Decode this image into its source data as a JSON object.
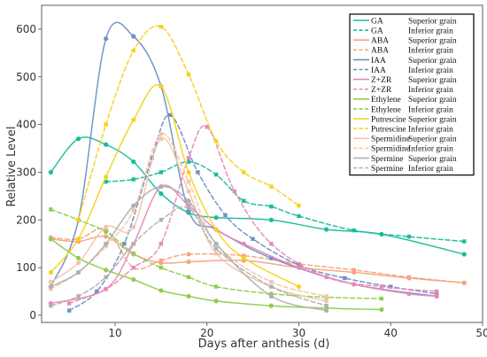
{
  "chart_data": {
    "type": "line",
    "xlabel": "Days after anthesis (d)",
    "ylabel": "Relative Level",
    "xlim": [
      2,
      50
    ],
    "ylim": [
      -15,
      650
    ],
    "xticks": [
      10,
      20,
      30,
      40,
      50
    ],
    "yticks": [
      0,
      100,
      200,
      300,
      400,
      500,
      600
    ],
    "grid": false,
    "legend_position": "top-right",
    "series": [
      {
        "name": "GA",
        "grain": "Superior grain",
        "style": "solid",
        "color": "#1abc9c",
        "x": [
          3,
          6,
          9,
          12,
          15,
          18,
          21,
          27,
          33,
          39,
          48
        ],
        "y": [
          300,
          370,
          358,
          322,
          255,
          215,
          205,
          200,
          180,
          170,
          128
        ]
      },
      {
        "name": "GA",
        "grain": "Inferior grain",
        "style": "dashed",
        "color": "#1abc9c",
        "x": [
          9,
          12,
          15,
          18,
          21,
          24,
          27,
          30,
          36,
          42,
          48
        ],
        "y": [
          280,
          285,
          300,
          322,
          295,
          240,
          228,
          208,
          178,
          165,
          155
        ]
      },
      {
        "name": "ABA",
        "grain": "Superior grain",
        "style": "solid",
        "color": "#f4a582",
        "x": [
          3,
          6,
          9,
          12,
          15,
          18,
          24,
          30,
          36,
          42,
          48
        ],
        "y": [
          160,
          155,
          165,
          128,
          110,
          112,
          115,
          100,
          90,
          78,
          68
        ]
      },
      {
        "name": "ABA",
        "grain": "Inferior grain",
        "style": "dashed",
        "color": "#f4a582",
        "x": [
          3,
          6,
          9,
          12,
          15,
          18,
          24,
          30,
          36,
          42,
          48
        ],
        "y": [
          163,
          160,
          180,
          100,
          115,
          128,
          125,
          108,
          95,
          80,
          68
        ]
      },
      {
        "name": "IAA",
        "grain": "Superior grain",
        "style": "solid",
        "color": "#6f8fc6",
        "x": [
          3,
          6,
          9,
          12,
          15,
          18,
          21,
          27,
          36,
          45
        ],
        "y": [
          60,
          200,
          580,
          585,
          480,
          220,
          180,
          120,
          65,
          40
        ]
      },
      {
        "name": "IAA",
        "grain": "Inferior grain",
        "style": "dashed",
        "color": "#6f8fc6",
        "x": [
          5,
          8,
          11,
          14,
          16,
          19,
          22,
          25,
          30,
          35,
          40,
          45
        ],
        "y": [
          10,
          50,
          150,
          330,
          420,
          300,
          210,
          160,
          105,
          78,
          60,
          45
        ]
      },
      {
        "name": "Z+ZR",
        "grain": "Superior grain",
        "style": "solid",
        "color": "#e889b8",
        "x": [
          3,
          9,
          12,
          15,
          18,
          21,
          24,
          30,
          36,
          42,
          45
        ],
        "y": [
          25,
          55,
          150,
          270,
          230,
          180,
          150,
          100,
          65,
          45,
          40
        ]
      },
      {
        "name": "Z+ZR",
        "grain": "Inferior grain",
        "style": "dashed",
        "color": "#e889b8",
        "x": [
          5,
          9,
          12,
          15,
          18,
          20,
          23,
          27,
          33,
          39,
          45
        ],
        "y": [
          25,
          55,
          100,
          150,
          330,
          395,
          260,
          150,
          80,
          60,
          50
        ]
      },
      {
        "name": "Ethylene",
        "grain": "Superior grain",
        "style": "solid",
        "color": "#8ccf4d",
        "x": [
          3,
          6,
          9,
          12,
          15,
          18,
          21,
          27,
          33,
          39
        ],
        "y": [
          160,
          120,
          95,
          75,
          52,
          40,
          30,
          20,
          15,
          12
        ]
      },
      {
        "name": "Ethylene",
        "grain": "Inferior grain",
        "style": "dashed",
        "color": "#8ccf4d",
        "x": [
          3,
          6,
          9,
          12,
          15,
          18,
          21,
          27,
          33,
          39
        ],
        "y": [
          222,
          200,
          175,
          130,
          100,
          80,
          60,
          45,
          38,
          35
        ]
      },
      {
        "name": "Putrescine",
        "grain": "Superior grain",
        "style": "solid",
        "color": "#f7d21c",
        "x": [
          3,
          6,
          9,
          12,
          15,
          18,
          21,
          24,
          30
        ],
        "y": [
          90,
          160,
          290,
          410,
          480,
          300,
          180,
          120,
          60
        ]
      },
      {
        "name": "Putrescine",
        "grain": "Inferior grain",
        "style": "dashed",
        "color": "#f7d21c",
        "x": [
          6,
          9,
          12,
          15,
          18,
          21,
          24,
          27,
          30
        ],
        "y": [
          200,
          400,
          555,
          605,
          505,
          365,
          300,
          270,
          230
        ]
      },
      {
        "name": "Spermidine",
        "grain": "Superior grain",
        "style": "solid",
        "color": "#f2c6a8",
        "x": [
          3,
          6,
          9,
          12,
          15,
          18,
          21,
          27,
          33
        ],
        "y": [
          70,
          110,
          185,
          185,
          370,
          260,
          130,
          60,
          30
        ]
      },
      {
        "name": "Spermidine",
        "grain": "Inferior grain",
        "style": "dashed",
        "color": "#f2c6a8",
        "x": [
          3,
          6,
          9,
          12,
          15,
          18,
          21,
          27,
          33
        ],
        "y": [
          55,
          90,
          145,
          220,
          380,
          280,
          150,
          70,
          40
        ]
      },
      {
        "name": "Spermine",
        "grain": "Superior grain",
        "style": "solid",
        "color": "#b0b0b0",
        "x": [
          3,
          6,
          9,
          12,
          15,
          18,
          21,
          27,
          33
        ],
        "y": [
          60,
          90,
          150,
          230,
          270,
          240,
          150,
          40,
          10
        ]
      },
      {
        "name": "Spermine",
        "grain": "Inferior grain",
        "style": "dashed",
        "color": "#b0b0b0",
        "x": [
          3,
          6,
          9,
          12,
          15,
          18,
          21,
          27,
          33
        ],
        "y": [
          20,
          40,
          80,
          150,
          200,
          225,
          140,
          60,
          20
        ]
      }
    ]
  }
}
